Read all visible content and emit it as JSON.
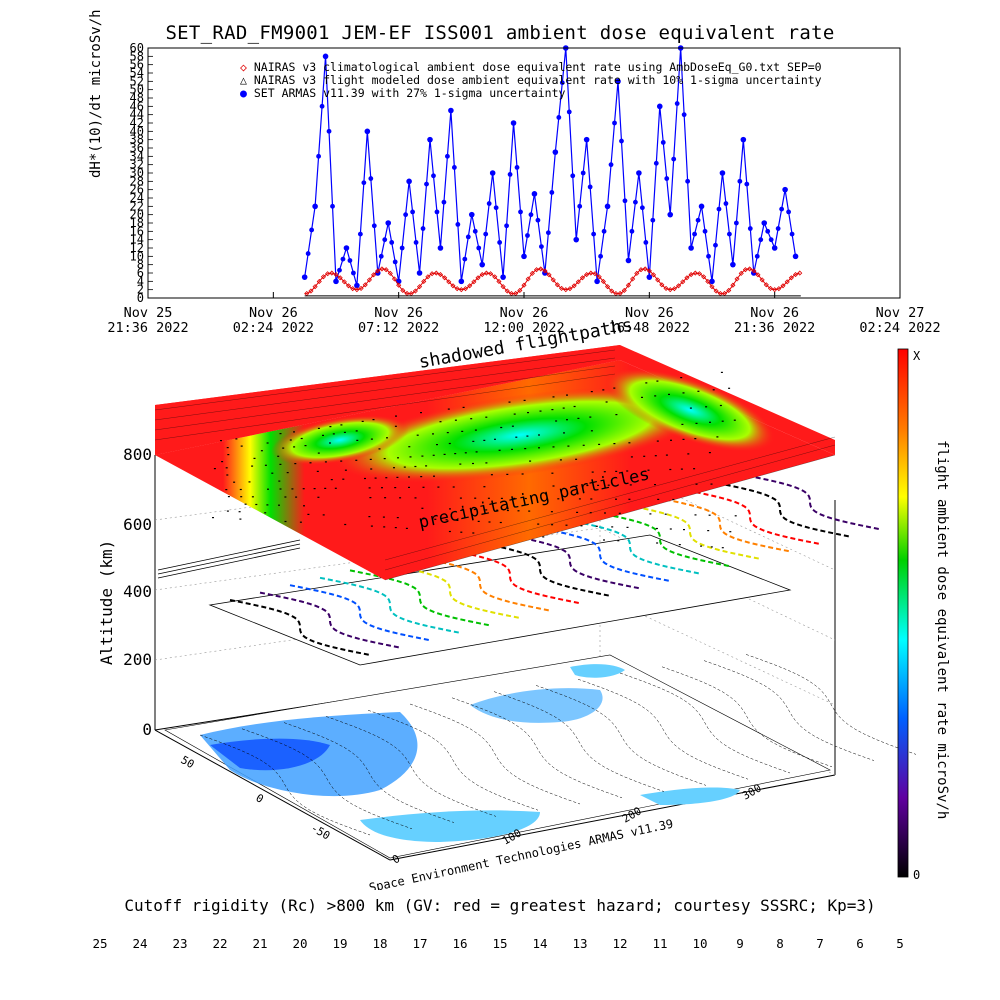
{
  "title": "SET_RAD_FM9001  JEM-EF ISS001 ambient dose equivalent rate",
  "chart_data": [
    {
      "type": "scatter",
      "ylabel": "dH*(10)/dt microSv/h",
      "ylim": [
        0,
        60
      ],
      "yticks": [
        "0",
        "2",
        "4",
        "6",
        "8",
        "10",
        "12",
        "14",
        "16",
        "18",
        "20",
        "22",
        "24",
        "26",
        "28",
        "30",
        "32",
        "34",
        "36",
        "38",
        "40",
        "42",
        "44",
        "46",
        "48",
        "50",
        "52",
        "54",
        "56",
        "58",
        "60"
      ],
      "xticks": [
        {
          "date": "Nov 25",
          "time": "21:36 2022"
        },
        {
          "date": "Nov 26",
          "time": "02:24 2022"
        },
        {
          "date": "Nov 26",
          "time": "07:12 2022"
        },
        {
          "date": "Nov 26",
          "time": "12:00 2022"
        },
        {
          "date": "Nov 26",
          "time": "16:48 2022"
        },
        {
          "date": "Nov 26",
          "time": "21:36 2022"
        },
        {
          "date": "Nov 27",
          "time": "02:24 2022"
        }
      ],
      "xrange_hours": [
        0,
        28.8
      ],
      "legend": [
        {
          "name": "NAIRAS v3 climatological ambient dose equivalent rate using AmbDoseEq_G0.txt SEP=0",
          "color": "#e00000",
          "marker": "diamond"
        },
        {
          "name": "NAIRAS v3 flight modeled dose ambient equivalent rate with 10% 1-sigma uncertainty",
          "color": "#000000",
          "marker": "triangle"
        },
        {
          "name": "SET ARMAS v11.39 with 27% 1-sigma uncertainty",
          "color": "#0000ff",
          "marker": "circle"
        }
      ],
      "series": [
        {
          "name": "SET ARMAS v11.39 with 27% 1-sigma uncertainty",
          "x": [
            6.0,
            6.4,
            6.8,
            7.2,
            7.6,
            8.0,
            8.4,
            8.8,
            9.2,
            9.6,
            10.0,
            10.4,
            10.8,
            11.2,
            11.6,
            12.0,
            12.4,
            12.8,
            13.2,
            13.6,
            14.0,
            14.4,
            14.8,
            15.2,
            15.6,
            16.0,
            16.4,
            16.8,
            17.2,
            17.6,
            18.0,
            18.4,
            18.8,
            19.2,
            19.6,
            20.0,
            20.4,
            20.8,
            21.2,
            21.6,
            22.0,
            22.4,
            22.8,
            23.2,
            23.6,
            24.0,
            24.4,
            24.8
          ],
          "y": [
            5,
            22,
            58,
            4,
            12,
            3,
            40,
            6,
            18,
            4,
            28,
            6,
            38,
            12,
            45,
            4,
            20,
            8,
            30,
            5,
            42,
            10,
            25,
            6,
            35,
            60,
            14,
            38,
            4,
            22,
            52,
            9,
            30,
            5,
            46,
            20,
            60,
            12,
            22,
            4,
            30,
            8,
            38,
            6,
            18,
            12,
            26,
            10
          ]
        },
        {
          "name": "NAIRAS v3 climatological ambient dose equivalent rate using AmbDoseEq_G0.txt SEP=0",
          "x": [
            6.0,
            7.0,
            8.0,
            9.0,
            10.0,
            11.0,
            12.0,
            13.0,
            14.0,
            15.0,
            16.0,
            17.0,
            18.0,
            19.0,
            20.0,
            21.0,
            22.0,
            23.0,
            24.0,
            25.0
          ],
          "y": [
            1,
            6,
            2,
            7,
            1,
            6,
            2,
            6,
            1,
            7,
            2,
            6,
            1,
            7,
            2,
            6,
            1,
            7,
            2,
            6
          ]
        }
      ]
    },
    {
      "type": "heatmap",
      "zlabel": "Altitude (km)",
      "zticks": [
        "0",
        "200",
        "400",
        "600",
        "800"
      ],
      "lon_ticks": [
        "0",
        "100",
        "200",
        "300"
      ],
      "lat_ticks": [
        "50",
        "0",
        "-50"
      ],
      "annotations": [
        "shadowed flightpaths",
        "precipitating particles"
      ],
      "credit": "Space Environment Technologies ARMAS v11.39",
      "colorbar_right": {
        "label": "flight ambient dose equivalent rate microSv/h",
        "top": "X",
        "bottom": "0"
      },
      "colorbar_bottom": {
        "title": "Cutoff rigidity (Rc) >800 km (GV: red = greatest hazard; courtesy SSSRC; Kp=3)",
        "ticks": [
          "25",
          "24",
          "23",
          "22",
          "21",
          "20",
          "19",
          "18",
          "17",
          "16",
          "15",
          "14",
          "13",
          "12",
          "11",
          "10",
          "9",
          "8",
          "7",
          "6",
          "5"
        ]
      }
    }
  ]
}
